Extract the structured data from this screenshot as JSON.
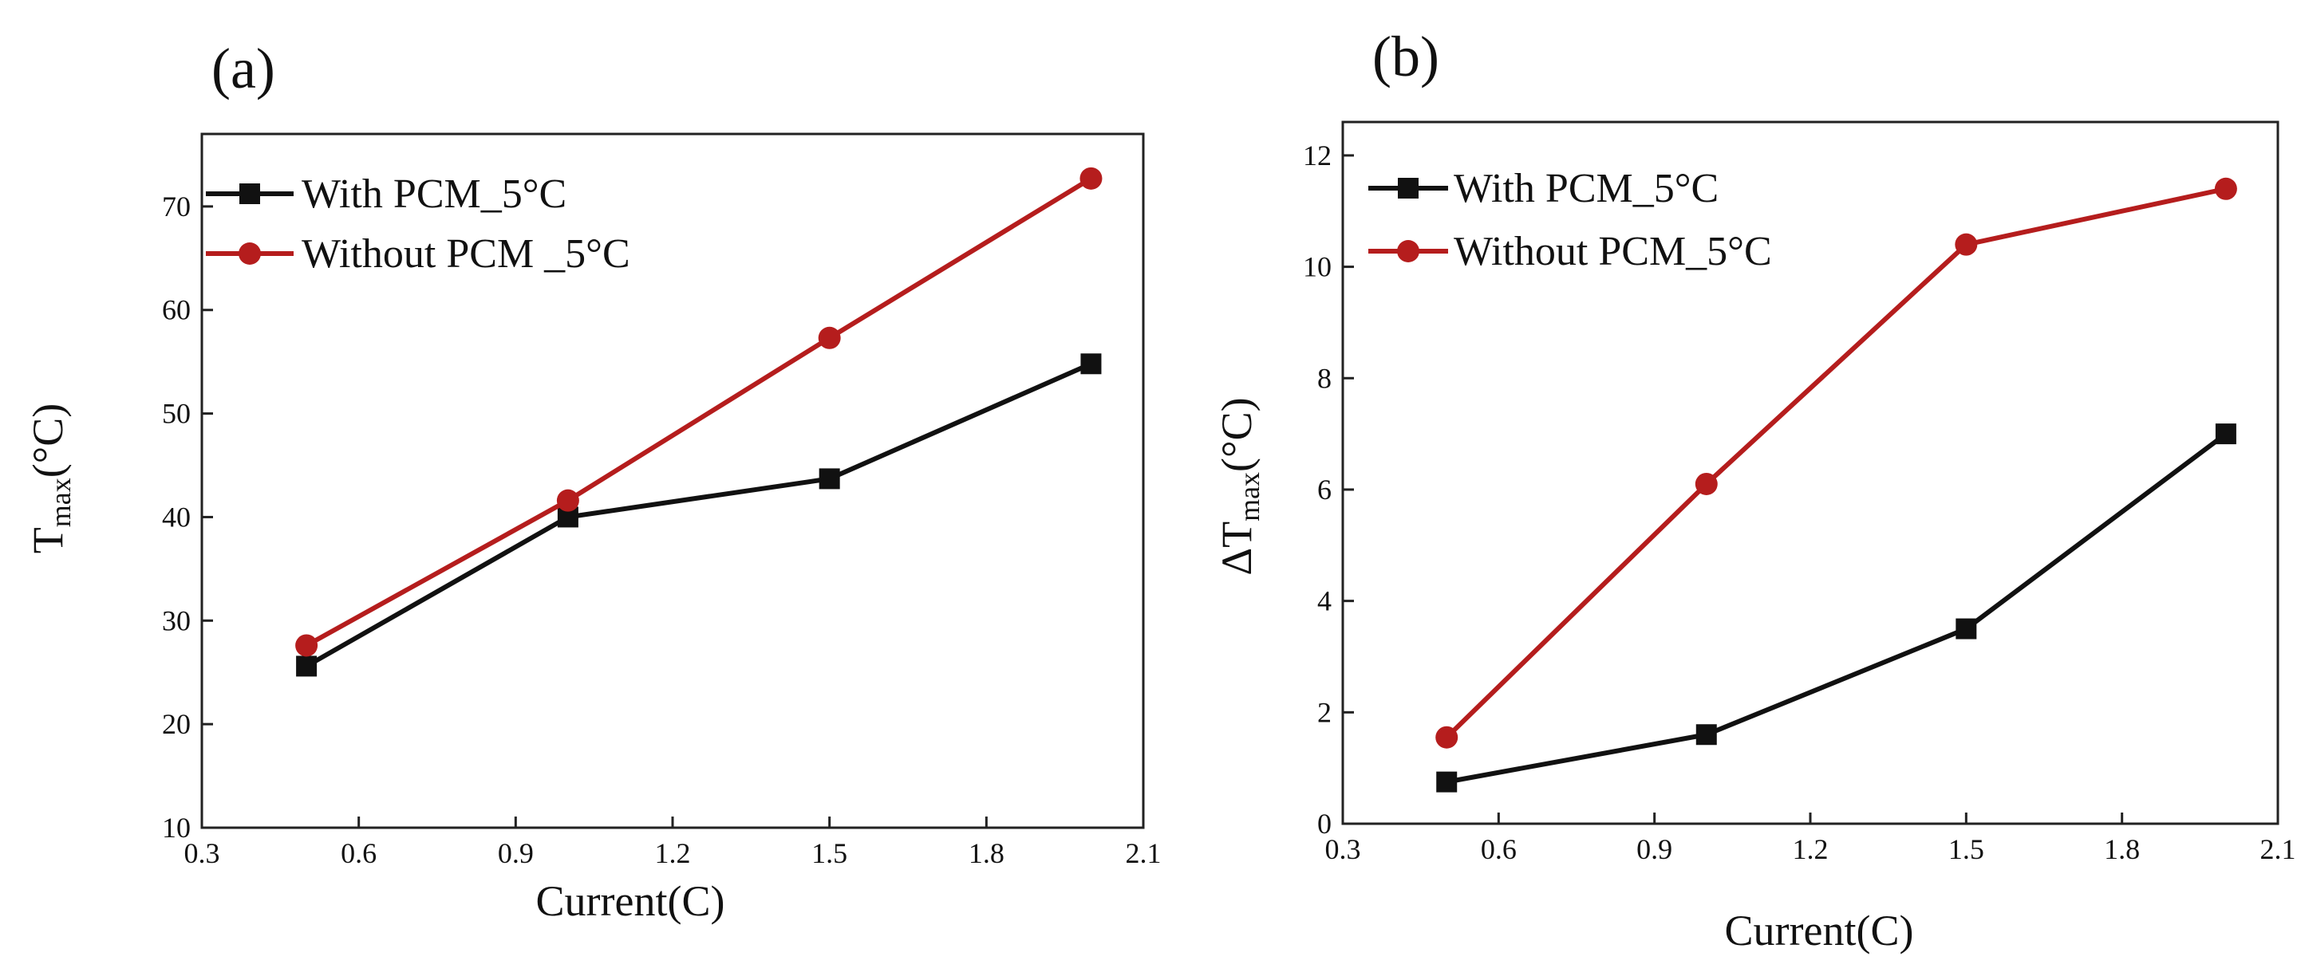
{
  "colors": {
    "series1": "#111111",
    "series2": "#b51d1d",
    "frame": "#222222"
  },
  "chart_data": [
    {
      "type": "line",
      "panel_label": "(a)",
      "xlabel": "Current(C)",
      "ylabel": {
        "base": "T",
        "sub": "max",
        "unit": "(°C)"
      },
      "xlim": [
        0.3,
        2.1
      ],
      "ylim": [
        10,
        77
      ],
      "xticks": [
        0.3,
        0.6,
        0.9,
        1.2,
        1.5,
        1.8,
        2.1
      ],
      "yticks": [
        10,
        20,
        30,
        40,
        50,
        60,
        70
      ],
      "xtick_labels": [
        "0.3",
        "0.6",
        "0.9",
        "1.2",
        "1.5",
        "1.8",
        "2.1"
      ],
      "ytick_labels": [
        "10",
        "20",
        "30",
        "40",
        "50",
        "60",
        "70"
      ],
      "legend_position": "top-left",
      "x": [
        0.5,
        1.0,
        1.5,
        2.0
      ],
      "series": [
        {
          "name": "With PCM_5°C",
          "marker": "square",
          "color": "#111111",
          "values": [
            25.6,
            40.0,
            43.7,
            54.8
          ]
        },
        {
          "name": "Without PCM _5°C",
          "marker": "circle",
          "color": "#b51d1d",
          "values": [
            27.6,
            41.6,
            57.3,
            72.7
          ]
        }
      ]
    },
    {
      "type": "line",
      "panel_label": "(b)",
      "xlabel": "Current(C)",
      "ylabel": {
        "base": "ΔT",
        "sub": "max",
        "unit": "(°C)"
      },
      "xlim": [
        0.3,
        2.1
      ],
      "ylim": [
        0,
        12.6
      ],
      "xticks": [
        0.3,
        0.6,
        0.9,
        1.2,
        1.5,
        1.8,
        2.1
      ],
      "yticks": [
        0,
        2,
        4,
        6,
        8,
        10,
        12
      ],
      "xtick_labels": [
        "0.3",
        "0.6",
        "0.9",
        "1.2",
        "1.5",
        "1.8",
        "2.1"
      ],
      "ytick_labels": [
        "0",
        "2",
        "4",
        "6",
        "8",
        "10",
        "12"
      ],
      "legend_position": "top-left",
      "x": [
        0.5,
        1.0,
        1.5,
        2.0
      ],
      "series": [
        {
          "name": "With PCM_5°C",
          "marker": "square",
          "color": "#111111",
          "values": [
            0.75,
            1.6,
            3.5,
            7.0
          ]
        },
        {
          "name": "Without PCM_5°C",
          "marker": "circle",
          "color": "#b51d1d",
          "values": [
            1.55,
            6.1,
            10.4,
            11.4
          ]
        }
      ]
    }
  ]
}
